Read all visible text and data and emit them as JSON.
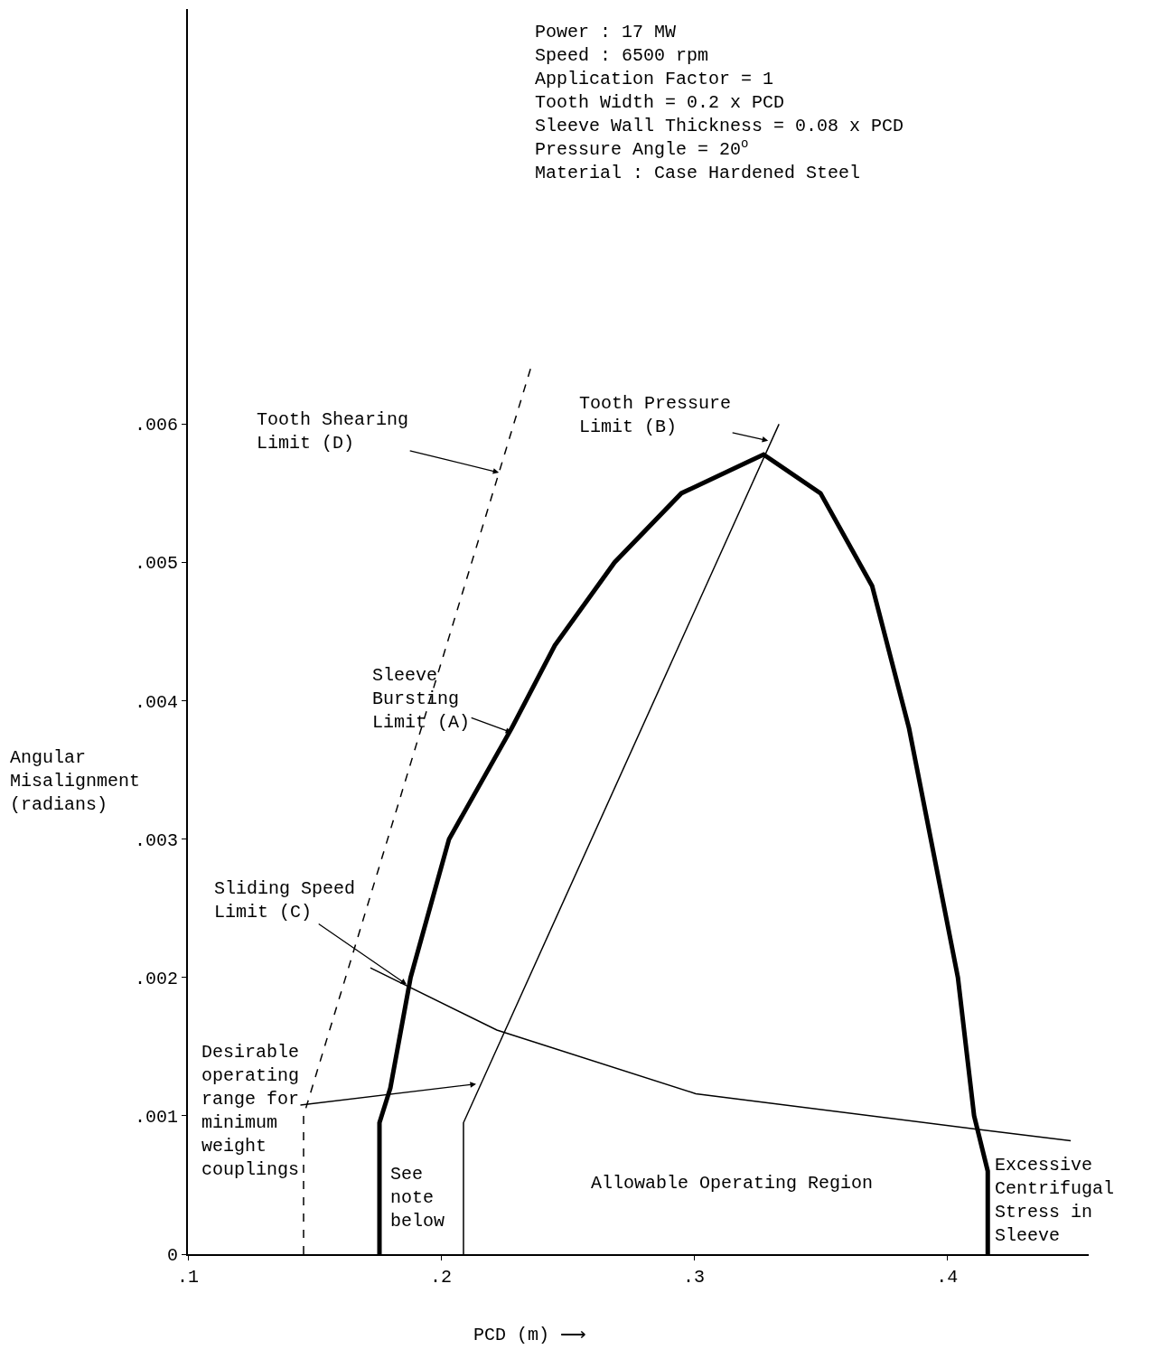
{
  "chart_data": {
    "type": "line",
    "xlabel": "PCD (m) ⟶",
    "ylabel": "Angular\nMisalignment\n(radians)",
    "xlim": [
      0.1,
      0.456
    ],
    "ylim": [
      0,
      0.009
    ],
    "xticks": [
      {
        "value": 0.1,
        "label": ".1"
      },
      {
        "value": 0.2,
        "label": ".2"
      },
      {
        "value": 0.3,
        "label": ".3"
      },
      {
        "value": 0.4,
        "label": ".4"
      }
    ],
    "yticks": [
      0,
      {
        "value": 0.001,
        "label": ".001"
      },
      {
        "value": 0.002,
        "label": ".002"
      },
      {
        "value": 0.003,
        "label": ".003"
      },
      {
        "value": 0.004,
        "label": ".004"
      },
      {
        "value": 0.005,
        "label": ".005"
      },
      {
        "value": 0.006,
        "label": ".006"
      }
    ],
    "marker": "none",
    "series": [
      {
        "color": "#000000",
        "line_style": "dashed",
        "x": [
          0.1457,
          0.1457,
          0.2354
        ],
        "values": [
          0,
          0.001,
          0.0064
        ]
      },
      {
        "color": "#000000",
        "line_style": "solid",
        "x": [
          0.1757,
          0.1757,
          0.18,
          0.188,
          0.2032,
          0.2279,
          0.245,
          0.2686,
          0.295,
          0.3275,
          0.35,
          0.3704,
          0.385,
          0.3936,
          0.4043,
          0.4107,
          0.4161,
          0.4161
        ],
        "values": [
          0,
          0.00095,
          0.0012,
          0.002,
          0.003,
          0.0038,
          0.0044,
          0.005,
          0.0055,
          0.00578,
          0.0055,
          0.00483,
          0.0038,
          0.003,
          0.002,
          0.001,
          0.0006,
          0
        ]
      },
      {
        "color": "#000000",
        "line_style": "solid",
        "x": [
          0.2089,
          0.2089,
          0.3336
        ],
        "values": [
          0,
          0.00095,
          0.006
        ]
      },
      {
        "color": "#000000",
        "line_style": "solid",
        "x": [
          0.1721,
          0.2221,
          0.3007,
          0.4132,
          0.4489
        ],
        "values": [
          0.00207,
          0.00162,
          0.00116,
          0.0009,
          0.00082
        ]
      }
    ],
    "annotations": [
      "Power : 17 MW\nSpeed : 6500 rpm\nApplication Factor = 1\nTooth Width = 0.2 x PCD\nSleeve Wall Thickness = 0.08 x PCD\nPressure Angle = 20$^{o}$\nMaterial : Case Hardened Steel",
      {
        "text": "Tooth Shearing\nLimit (D)",
        "x": 0.2229,
        "y": 0.00565
      },
      {
        "text": "Tooth Pressure\nLimit (B)",
        "x": 0.3293,
        "y": 0.00588
      },
      {
        "text": "Sleeve\nBursting\nLimit (A)",
        "x": 0.2279,
        "y": 0.00377
      },
      {
        "text": "Sliding Speed\nLimit (C)",
        "x": 0.1864,
        "y": 0.00195
      },
      {
        "text": "Desirable\noperating\nrange for\nminimum\nweight\ncouplings",
        "x": 0.2139,
        "y": 0.00123
      },
      "See\nnote\nbelow",
      "Allowable Operating Region",
      "Excessive\nCentrifugal\nStress in\nSleeve"
    ]
  }
}
